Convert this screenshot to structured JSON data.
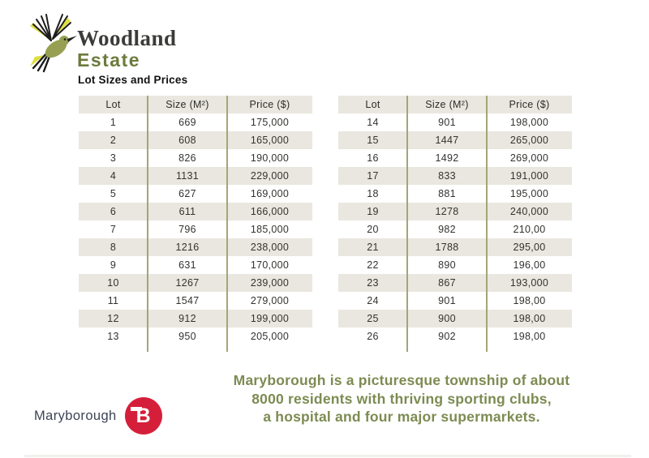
{
  "brand": {
    "name_line1": "Woodland",
    "name_line2": "Estate"
  },
  "heading": "Lot Sizes and Prices",
  "table": {
    "columns": [
      "Lot",
      "Size (M²)",
      "Price ($)"
    ],
    "left_rows": [
      [
        "1",
        "669",
        "175,000"
      ],
      [
        "2",
        "608",
        "165,000"
      ],
      [
        "3",
        "826",
        "190,000"
      ],
      [
        "4",
        "1131",
        "229,000"
      ],
      [
        "5",
        "627",
        "169,000"
      ],
      [
        "6",
        "611",
        "166,000"
      ],
      [
        "7",
        "796",
        "185,000"
      ],
      [
        "8",
        "1216",
        "238,000"
      ],
      [
        "9",
        "631",
        "170,000"
      ],
      [
        "10",
        "1267",
        "239,000"
      ],
      [
        "11",
        "1547",
        "279,000"
      ],
      [
        "12",
        "912",
        "199,000"
      ],
      [
        "13",
        "950",
        "205,000"
      ]
    ],
    "right_rows": [
      [
        "14",
        "901",
        "198,000"
      ],
      [
        "15",
        "1447",
        "265,000"
      ],
      [
        "16",
        "1492",
        "269,000"
      ],
      [
        "17",
        "833",
        "191,000"
      ],
      [
        "18",
        "881",
        "195,000"
      ],
      [
        "19",
        "1278",
        "240,000"
      ],
      [
        "20",
        "982",
        "210,00"
      ],
      [
        "21",
        "1788",
        "295,00"
      ],
      [
        "22",
        "890",
        "196,00"
      ],
      [
        "23",
        "867",
        "193,000"
      ],
      [
        "24",
        "901",
        "198,00"
      ],
      [
        "25",
        "900",
        "198,00"
      ],
      [
        "26",
        "902",
        "198,00"
      ]
    ]
  },
  "footer": {
    "logo_text": "Maryborough",
    "logo_letter": "B",
    "paragraph_lines": [
      "Maryborough is a picturesque township of about",
      "8000 residents with thriving sporting clubs,",
      "a hospital and four major supermarkets."
    ]
  },
  "colors": {
    "estate_olive": "#6c7b3d",
    "paragraph_green": "#7d8b52",
    "stripe_beige": "#e9e7df",
    "divider_olive": "#a5a577",
    "maryborough_navy": "#3d4456",
    "maryborough_red": "#d51f3a"
  }
}
